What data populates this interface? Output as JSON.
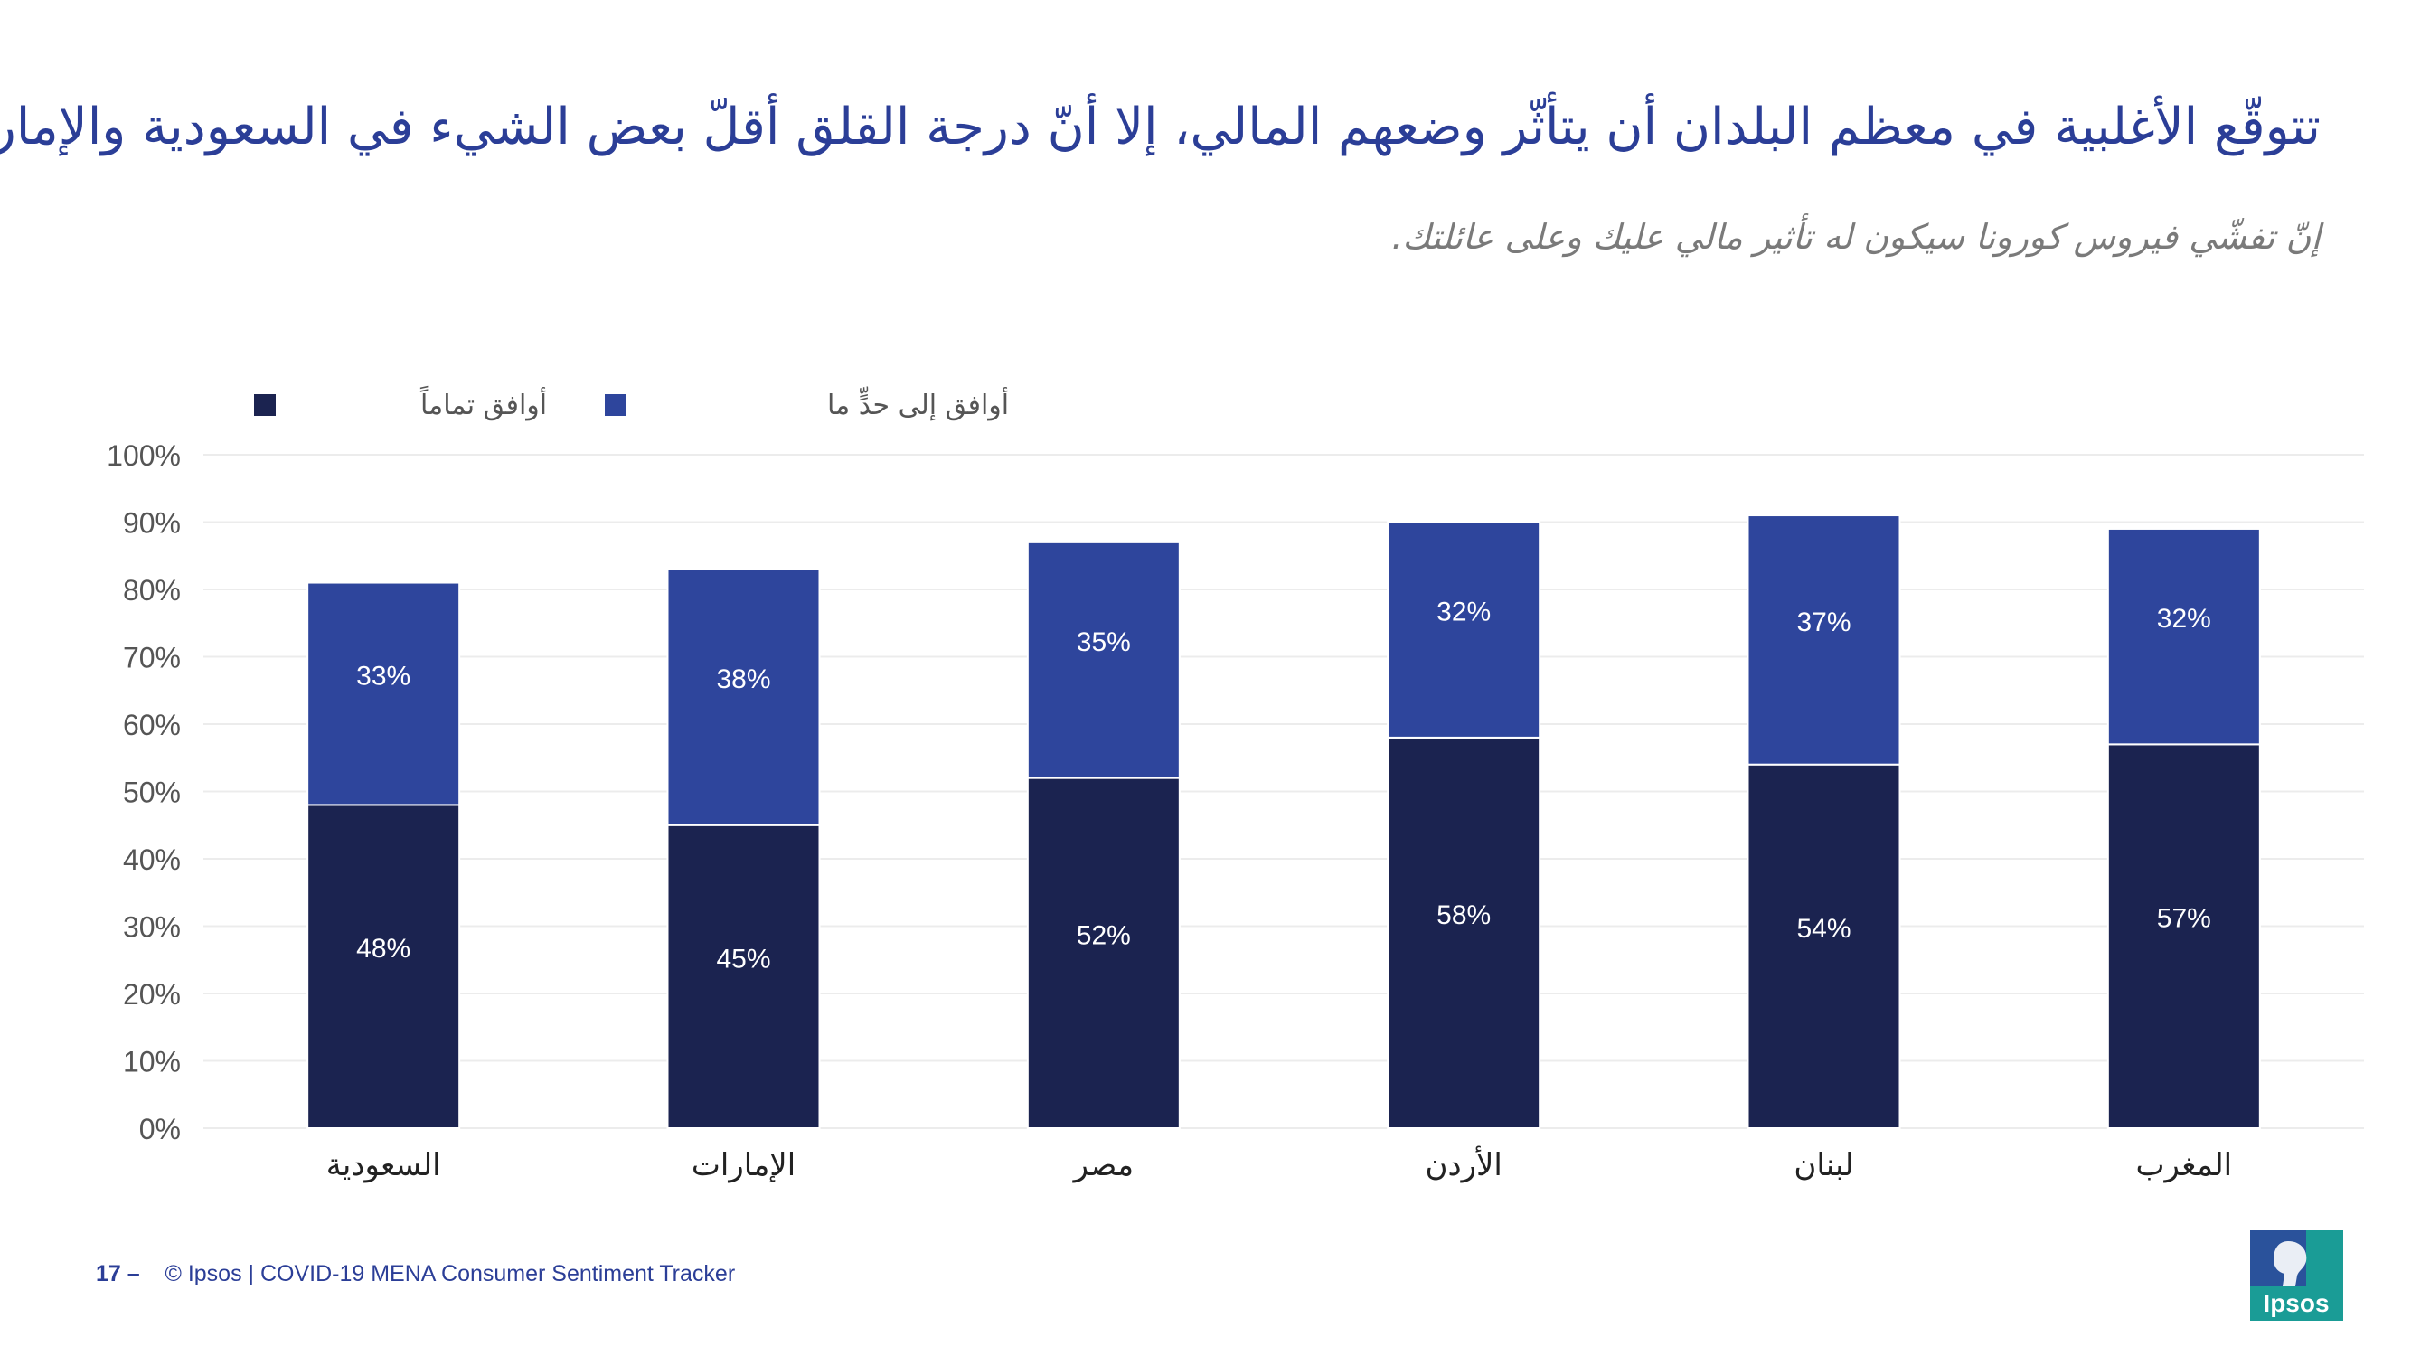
{
  "title": "تتوقّع الأغلبية في معظم البلدان أن يتأثّر وضعهم المالي، إلا أنّ درجة القلق أقلّ بعض الشيء في السعودية والإمارات",
  "subtitle": "إنّ تفشّي فيروس كورونا سيكون له تأثير مالي عليك وعلى عائلتك.",
  "footer": {
    "page": "17 –",
    "text": "© Ipsos | COVID-19 MENA Consumer Sentiment Tracker"
  },
  "logo": {
    "text": "Ipsos"
  },
  "colors": {
    "title": "#2b3e97",
    "series_completely": "#1b2350",
    "series_somewhat": "#2e459c",
    "logo_bg": "#1a9c96"
  },
  "chart_data": {
    "type": "bar",
    "stacked": true,
    "categories": [
      "السعودية",
      "الإمارات",
      "مصر",
      "الأردن",
      "لبنان",
      "المغرب"
    ],
    "series": [
      {
        "name": "أوافق تماماً",
        "color": "#1b2350",
        "values": [
          48,
          45,
          52,
          58,
          54,
          57
        ]
      },
      {
        "name": "أوافق إلى حدٍّ ما",
        "color": "#2e459c",
        "values": [
          33,
          38,
          35,
          32,
          37,
          32
        ]
      }
    ],
    "ylim": [
      0,
      100
    ],
    "yticks": [
      "0%",
      "10%",
      "20%",
      "30%",
      "40%",
      "50%",
      "60%",
      "70%",
      "80%",
      "90%",
      "100%"
    ],
    "value_labels": [
      [
        "48%",
        "45%",
        "52%",
        "58%",
        "54%",
        "57%"
      ],
      [
        "33%",
        "38%",
        "35%",
        "32%",
        "37%",
        "32%"
      ]
    ],
    "grid": true,
    "legend": "top-left"
  }
}
